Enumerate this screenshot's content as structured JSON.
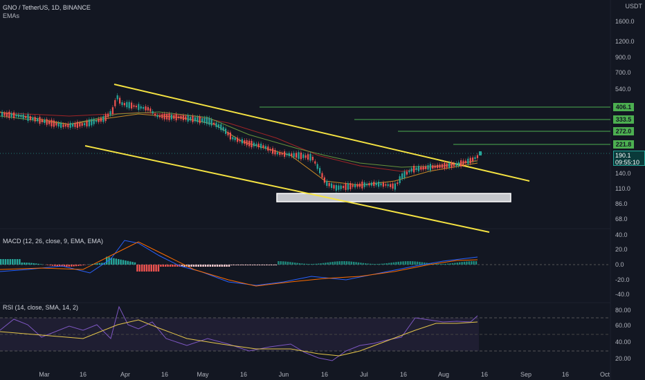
{
  "header": {
    "symbol": "GNO / TetherUS, 1D, BINANCE",
    "indicator": "EMAs"
  },
  "price_axis": {
    "currency": "USDT",
    "ticks": [
      "1600.0",
      "1200.0",
      "900.0",
      "700.0",
      "540.0",
      "140.0",
      "110.0",
      "86.0",
      "68.0"
    ]
  },
  "levels": [
    {
      "label": "406.1",
      "color": "#4caf50"
    },
    {
      "label": "333.5",
      "color": "#4caf50"
    },
    {
      "label": "272.0",
      "color": "#4caf50"
    },
    {
      "label": "221.8",
      "color": "#4caf50"
    }
  ],
  "last_price": {
    "value": "190.1",
    "countdown": "09:55:10"
  },
  "macd": {
    "label": "MACD (12, 26, close, 9, EMA, EMA)",
    "ticks": [
      "40.0",
      "20.0",
      "0.0",
      "-20.0",
      "-40.0"
    ]
  },
  "rsi": {
    "label": "RSI (14, close, SMA, 14, 2)",
    "ticks": [
      "80.00",
      "60.00",
      "40.00",
      "20.00"
    ]
  },
  "time_axis": [
    "Mar",
    "16",
    "Apr",
    "16",
    "May",
    "16",
    "Jun",
    "16",
    "Jul",
    "16",
    "Aug",
    "16",
    "Sep",
    "16",
    "Oct"
  ],
  "colors": {
    "bg": "#131722",
    "up": "#26a69a",
    "down": "#ef5350",
    "trend": "#f5e342",
    "level": "#4caf50"
  }
}
